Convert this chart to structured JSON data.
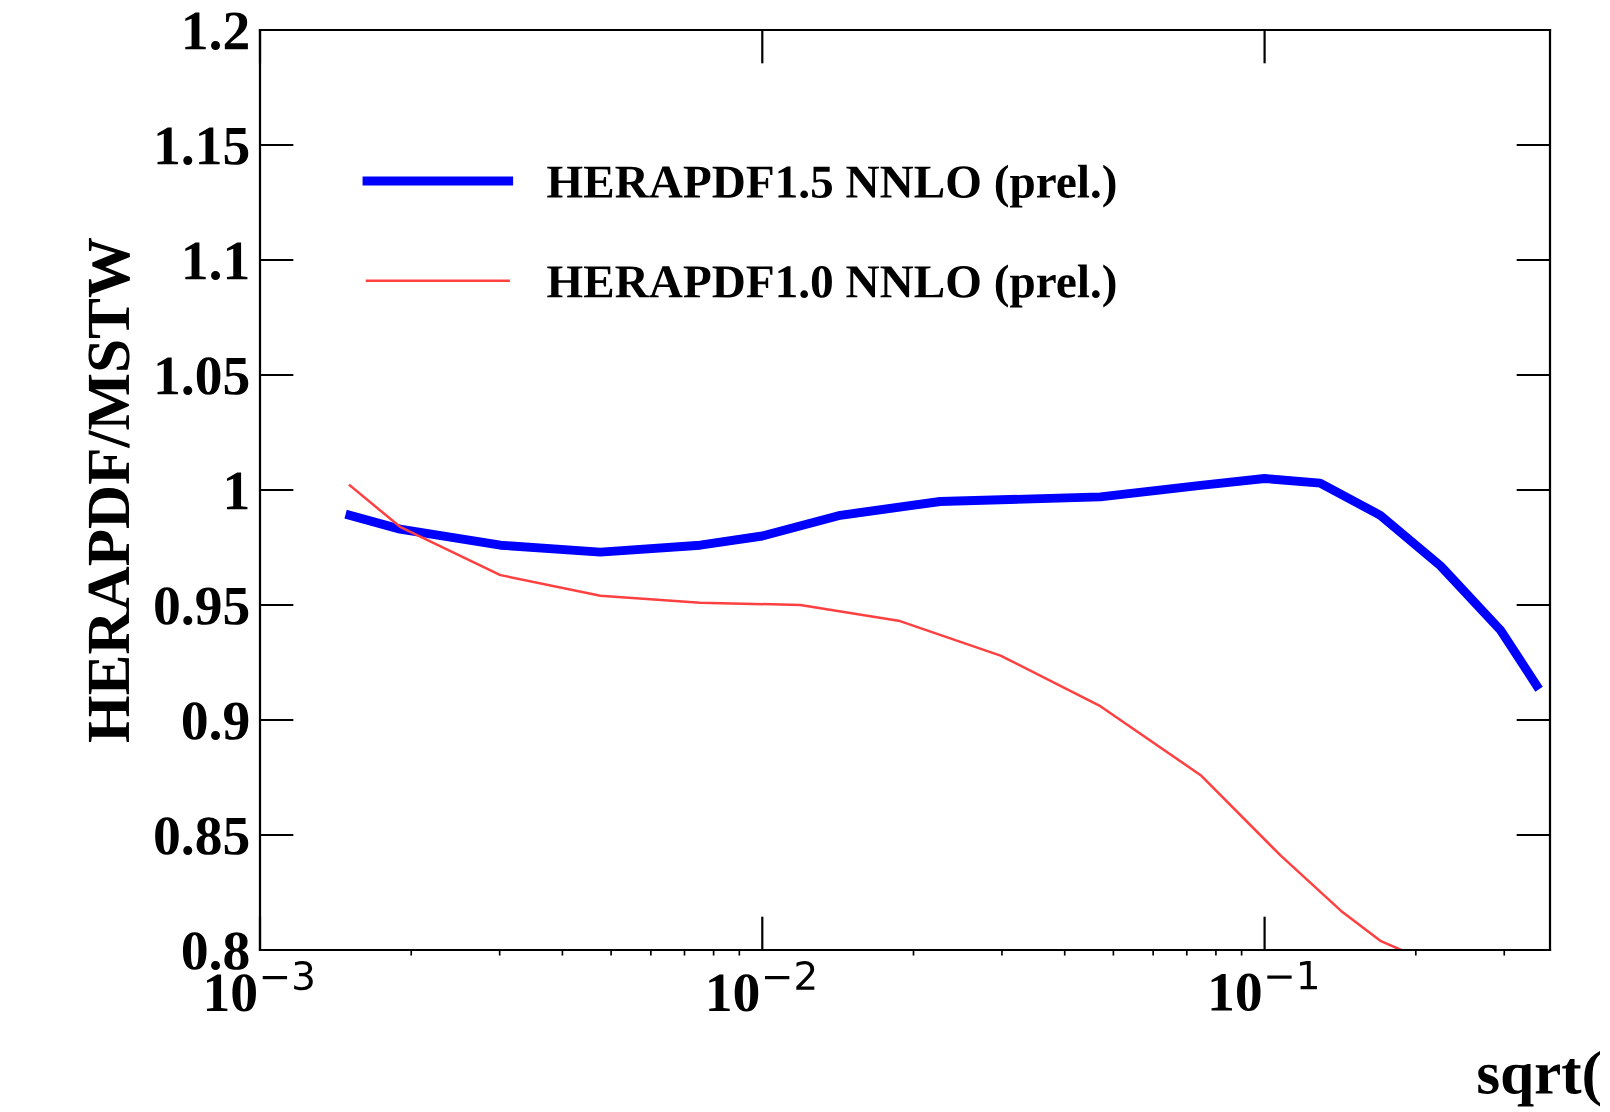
{
  "chart_data": {
    "type": "line",
    "ylabel": "HERAPDF/MSTW",
    "xlabel": "sqrt(",
    "log": "x",
    "xlim": [
      0.001,
      0.37
    ],
    "xticks": [
      {
        "value": 0.001,
        "label": "10$^{−3}$"
      },
      {
        "value": 0.01,
        "label": "10$^{−2}$"
      },
      {
        "value": 0.1,
        "label": "10$^{−1}$"
      }
    ],
    "ylim": [
      0.8,
      1.2
    ],
    "yticks": [
      0.8,
      0.85,
      0.9,
      0.95,
      1,
      1.05,
      1.1,
      1.15,
      1.2
    ],
    "legend": "upper left",
    "grid": false,
    "series": [
      {
        "name": "HERAPDF1.5 NNLO (prel.)",
        "color": "#0000ff",
        "x": [
          0.00151,
          0.0019,
          0.00301,
          0.00476,
          0.00752,
          0.01,
          0.0143,
          0.0226,
          0.0471,
          0.0746,
          0.1,
          0.129,
          0.17,
          0.224,
          0.295,
          0.348
        ],
        "values": [
          0.989,
          0.983,
          0.976,
          0.973,
          0.976,
          0.98,
          0.989,
          0.995,
          0.997,
          1.002,
          1.005,
          1.003,
          0.989,
          0.967,
          0.939,
          0.915
        ]
      },
      {
        "name": "HERAPDF1.0 NNLO (prel.)",
        "color": "#ff4040",
        "x": [
          0.00151,
          0.0019,
          0.00301,
          0.00476,
          0.00752,
          0.0119,
          0.0188,
          0.0298,
          0.0471,
          0.0746,
          0.1077,
          0.142,
          0.17,
          0.187
        ],
        "values": [
          1.002,
          0.984,
          0.963,
          0.954,
          0.951,
          0.95,
          0.943,
          0.928,
          0.906,
          0.876,
          0.841,
          0.817,
          0.804,
          0.8
        ]
      }
    ]
  }
}
